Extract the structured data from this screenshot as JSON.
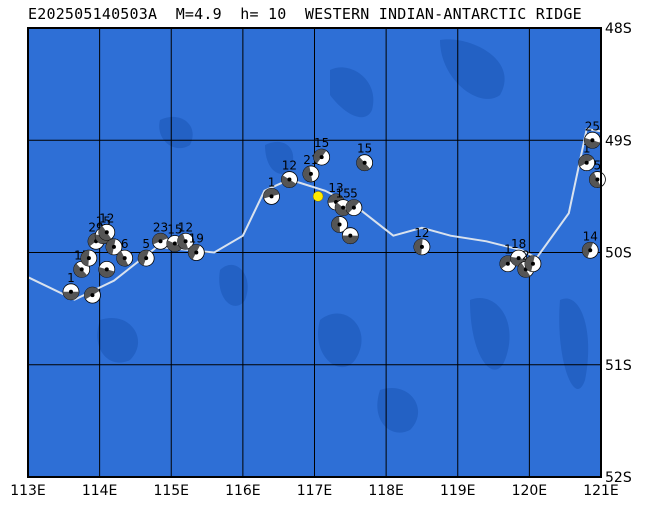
{
  "title": "E202505140503A  M=4.9  h= 10  WESTERN INDIAN-ANTARCTIC RIDGE",
  "map": {
    "lon_range": [
      113,
      121
    ],
    "lat_range": [
      -52,
      -48
    ],
    "lon_ticks": [
      "113E",
      "114E",
      "115E",
      "116E",
      "117E",
      "118E",
      "119E",
      "120E",
      "121E"
    ],
    "lat_ticks": [
      "48S",
      "49S",
      "50S",
      "51S",
      "52S"
    ],
    "ocean_color": "#2e6fd6",
    "deep_color": "#2361c4",
    "grid_color": "#000000",
    "ridge_color": "#d9e2ee",
    "epicenter_color": "#ffeb00"
  },
  "epicenter": {
    "lon": 117.05,
    "lat": -49.5
  },
  "ridge": [
    [
      113,
      -50.22
    ],
    [
      113.65,
      -50.42
    ],
    [
      114.2,
      -50.25
    ],
    [
      114.8,
      -49.95
    ],
    [
      115.6,
      -50.0
    ],
    [
      116.0,
      -49.85
    ],
    [
      116.3,
      -49.45
    ],
    [
      116.65,
      -49.35
    ],
    [
      117.15,
      -49.45
    ],
    [
      117.6,
      -49.6
    ],
    [
      118.1,
      -49.85
    ],
    [
      118.5,
      -49.78
    ],
    [
      118.9,
      -49.85
    ],
    [
      119.4,
      -49.9
    ],
    [
      119.9,
      -49.98
    ],
    [
      120.1,
      -50.05
    ],
    [
      120.55,
      -49.65
    ],
    [
      120.8,
      -48.9
    ],
    [
      121,
      -48.92
    ]
  ],
  "mechanisms": [
    {
      "lon": 113.6,
      "lat": -50.35,
      "label": "1"
    },
    {
      "lon": 113.75,
      "lat": -50.15,
      "label": "15"
    },
    {
      "lon": 113.85,
      "lat": -50.05,
      "label": ""
    },
    {
      "lon": 113.95,
      "lat": -49.9,
      "label": "29"
    },
    {
      "lon": 114.05,
      "lat": -49.85,
      "label": "15"
    },
    {
      "lon": 114.1,
      "lat": -49.82,
      "label": "12"
    },
    {
      "lon": 114.2,
      "lat": -49.95,
      "label": ""
    },
    {
      "lon": 113.9,
      "lat": -50.38,
      "label": ""
    },
    {
      "lon": 114.1,
      "lat": -50.15,
      "label": ""
    },
    {
      "lon": 114.35,
      "lat": -50.05,
      "label": "6"
    },
    {
      "lon": 114.65,
      "lat": -50.05,
      "label": "5"
    },
    {
      "lon": 114.85,
      "lat": -49.9,
      "label": "23"
    },
    {
      "lon": 115.05,
      "lat": -49.92,
      "label": "15"
    },
    {
      "lon": 115.2,
      "lat": -49.9,
      "label": "12"
    },
    {
      "lon": 115.35,
      "lat": -50.0,
      "label": "19"
    },
    {
      "lon": 116.4,
      "lat": -49.5,
      "label": "1"
    },
    {
      "lon": 116.65,
      "lat": -49.35,
      "label": "12"
    },
    {
      "lon": 116.95,
      "lat": -49.3,
      "label": "21"
    },
    {
      "lon": 117.1,
      "lat": -49.15,
      "label": "15"
    },
    {
      "lon": 117.3,
      "lat": -49.55,
      "label": "13"
    },
    {
      "lon": 117.4,
      "lat": -49.6,
      "label": "15"
    },
    {
      "lon": 117.35,
      "lat": -49.75,
      "label": ""
    },
    {
      "lon": 117.55,
      "lat": -49.6,
      "label": "5"
    },
    {
      "lon": 117.5,
      "lat": -49.85,
      "label": ""
    },
    {
      "lon": 117.7,
      "lat": -49.2,
      "label": "15"
    },
    {
      "lon": 118.5,
      "lat": -49.95,
      "label": "12"
    },
    {
      "lon": 119.7,
      "lat": -50.1,
      "label": "1"
    },
    {
      "lon": 119.85,
      "lat": -50.05,
      "label": "18"
    },
    {
      "lon": 119.95,
      "lat": -50.15,
      "label": "2"
    },
    {
      "lon": 120.05,
      "lat": -50.1,
      "label": ""
    },
    {
      "lon": 120.8,
      "lat": -49.2,
      "label": "1"
    },
    {
      "lon": 120.88,
      "lat": -49.0,
      "label": "25"
    },
    {
      "lon": 120.95,
      "lat": -49.35,
      "label": "5"
    },
    {
      "lon": 120.85,
      "lat": -49.98,
      "label": "14"
    }
  ]
}
